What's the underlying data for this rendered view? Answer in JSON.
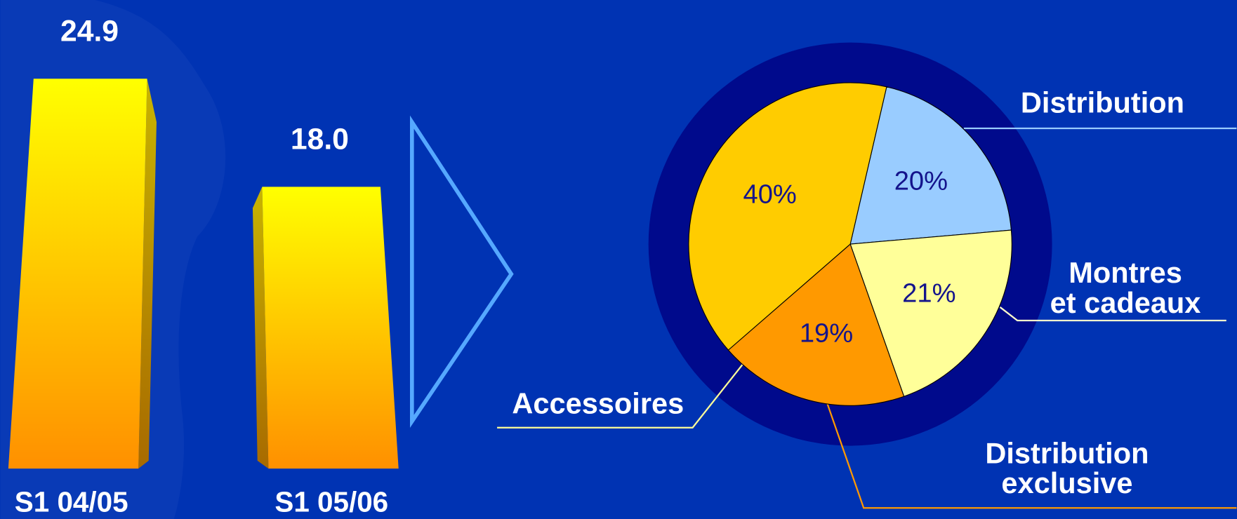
{
  "chart_data": [
    {
      "type": "bar",
      "categories": [
        "S1 04/05",
        "S1 05/06"
      ],
      "values": [
        24.9,
        18.0
      ],
      "value_labels": [
        "24.9",
        "18.0"
      ],
      "color": "#ffcc00"
    },
    {
      "type": "pie",
      "categories": [
        "Distribution",
        "Montres\net cadeaux",
        "Distribution\nexclusive",
        "Accessoires"
      ],
      "values": [
        20,
        21,
        19,
        40
      ],
      "value_labels": [
        "20%",
        "21%",
        "19%",
        "40%"
      ],
      "colors": [
        "#99ccff",
        "#ffff99",
        "#ff9900",
        "#ffcc00"
      ]
    }
  ]
}
